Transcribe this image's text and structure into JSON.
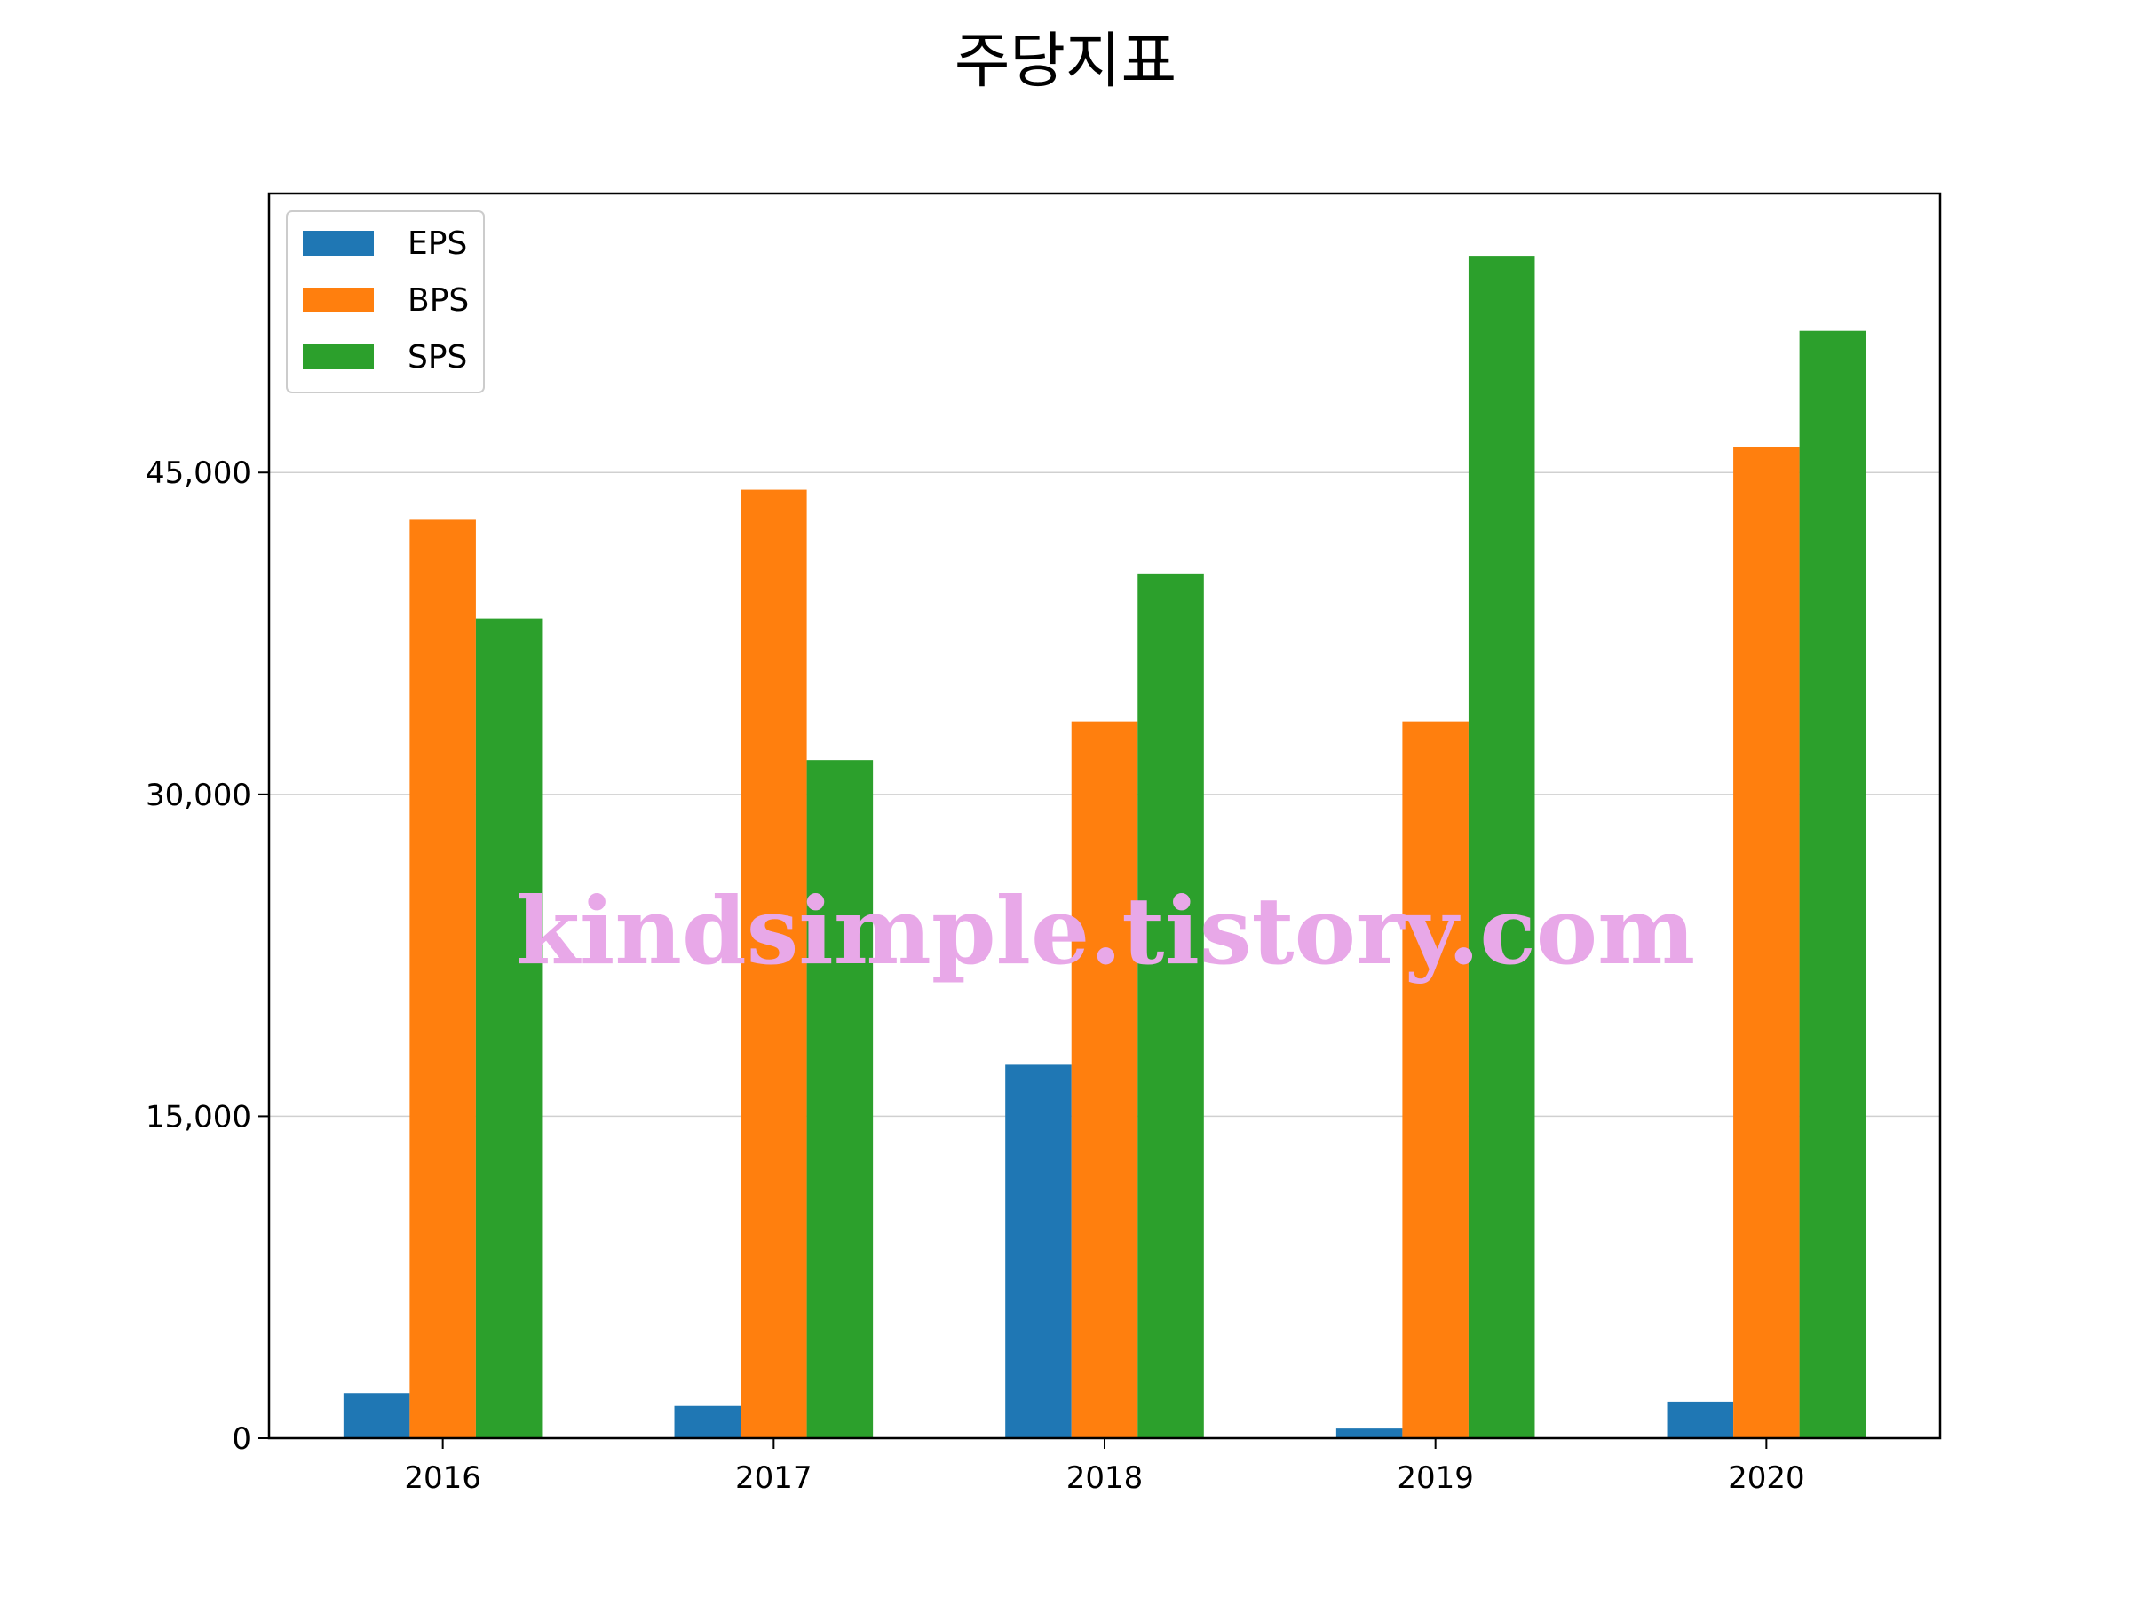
{
  "chart_data": {
    "type": "bar",
    "title": "주당지표",
    "xlabel": "",
    "ylabel": "",
    "categories": [
      "2016",
      "2017",
      "2018",
      "2019",
      "2020"
    ],
    "series": [
      {
        "name": "EPS",
        "color": "#1f77b4",
        "values": [
          2100,
          1500,
          17400,
          450,
          1700
        ]
      },
      {
        "name": "BPS",
        "color": "#ff7f0e",
        "values": [
          42800,
          44200,
          33400,
          33400,
          46200
        ]
      },
      {
        "name": "SPS",
        "color": "#2ca02c",
        "values": [
          38200,
          31600,
          40300,
          55100,
          51600
        ]
      }
    ],
    "ylim": [
      0,
      58000
    ],
    "yticks": [
      0,
      15000,
      30000,
      45000
    ],
    "ytick_labels": [
      "0",
      "15,000",
      "30,000",
      "45,000"
    ],
    "grid": "horizontal",
    "legend": "top-left",
    "watermark": "kindsimple.tistory.com"
  }
}
